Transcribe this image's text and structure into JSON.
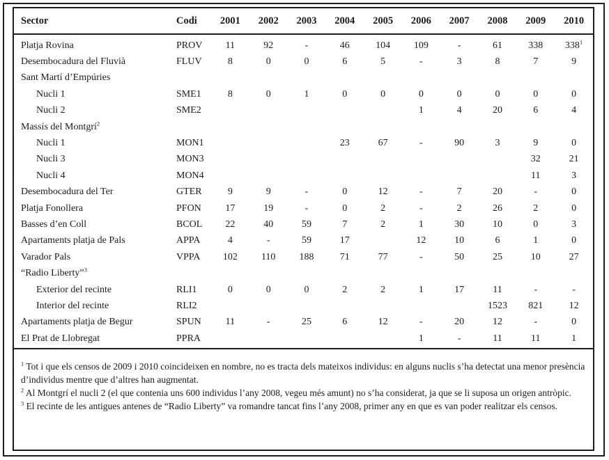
{
  "table": {
    "columns": [
      "Sector",
      "Codi",
      "2001",
      "2002",
      "2003",
      "2004",
      "2005",
      "2006",
      "2007",
      "2008",
      "2009",
      "2010"
    ],
    "rows": [
      {
        "sector": "Platja Rovina",
        "indent": false,
        "codi": "PROV",
        "values": [
          "11",
          "92",
          "-",
          "46",
          "104",
          "109",
          "-",
          "61",
          "338",
          "338^1"
        ]
      },
      {
        "sector": "Desembocadura del Fluvià",
        "indent": false,
        "codi": "FLUV",
        "values": [
          "8",
          "0",
          "0",
          "6",
          "5",
          "-",
          "3",
          "8",
          "7",
          "9"
        ]
      },
      {
        "sector": "Sant Martí d’Empúries",
        "indent": false,
        "codi": "",
        "values": [
          "",
          "",
          "",
          "",
          "",
          "",
          "",
          "",
          "",
          ""
        ]
      },
      {
        "sector": "Nucli 1",
        "indent": true,
        "codi": "SME1",
        "values": [
          "8",
          "0",
          "1",
          "0",
          "0",
          "0",
          "0",
          "0",
          "0",
          "0"
        ]
      },
      {
        "sector": "Nucli 2",
        "indent": true,
        "codi": "SME2",
        "values": [
          "",
          "",
          "",
          "",
          "",
          "1",
          "4",
          "20",
          "6",
          "4"
        ]
      },
      {
        "sector": "Massís del Montgrí^2",
        "indent": false,
        "codi": "",
        "values": [
          "",
          "",
          "",
          "",
          "",
          "",
          "",
          "",
          "",
          ""
        ]
      },
      {
        "sector": "Nucli 1",
        "indent": true,
        "codi": "MON1",
        "values": [
          "",
          "",
          "",
          "23",
          "67",
          "-",
          "90",
          "3",
          "9",
          "0"
        ]
      },
      {
        "sector": "Nucli 3",
        "indent": true,
        "codi": "MON3",
        "values": [
          "",
          "",
          "",
          "",
          "",
          "",
          "",
          "",
          "32",
          "21"
        ]
      },
      {
        "sector": "Nucli 4",
        "indent": true,
        "codi": "MON4",
        "values": [
          "",
          "",
          "",
          "",
          "",
          "",
          "",
          "",
          "11",
          "3"
        ]
      },
      {
        "sector": "Desembocadura del Ter",
        "indent": false,
        "codi": "GTER",
        "values": [
          "9",
          "9",
          "-",
          "0",
          "12",
          "-",
          "7",
          "20",
          "-",
          "0"
        ]
      },
      {
        "sector": "Platja Fonollera",
        "indent": false,
        "codi": "PFON",
        "values": [
          "17",
          "19",
          "-",
          "0",
          "2",
          "-",
          "2",
          "26",
          "2",
          "0"
        ]
      },
      {
        "sector": "Basses d’en Coll",
        "indent": false,
        "codi": "BCOL",
        "values": [
          "22",
          "40",
          "59",
          "7",
          "2",
          "1",
          "30",
          "10",
          "0",
          "3"
        ]
      },
      {
        "sector": "Apartaments platja de Pals",
        "indent": false,
        "codi": "APPA",
        "values": [
          "4",
          "-",
          "59",
          "17",
          "",
          "12",
          "10",
          "6",
          "1",
          "0"
        ]
      },
      {
        "sector": "Varador Pals",
        "indent": false,
        "codi": "VPPA",
        "values": [
          "102",
          "110",
          "188",
          "71",
          "77",
          "-",
          "50",
          "25",
          "10",
          "27"
        ]
      },
      {
        "sector": "“Radio Liberty”^3",
        "indent": false,
        "codi": "",
        "values": [
          "",
          "",
          "",
          "",
          "",
          "",
          "",
          "",
          "",
          ""
        ]
      },
      {
        "sector": "Exterior del recinte",
        "indent": true,
        "codi": "RLI1",
        "values": [
          "0",
          "0",
          "0",
          "2",
          "2",
          "1",
          "17",
          "11",
          "-",
          "-"
        ]
      },
      {
        "sector": "Interior del recinte",
        "indent": true,
        "codi": "RLI2",
        "values": [
          "",
          "",
          "",
          "",
          "",
          "",
          "",
          "1523",
          "821",
          "12"
        ]
      },
      {
        "sector": "Apartaments platja de Begur",
        "indent": false,
        "codi": "SPUN",
        "values": [
          "11",
          "-",
          "25",
          "6",
          "12",
          "-",
          "20",
          "12",
          "-",
          "0"
        ]
      },
      {
        "sector": "El Prat de Llobregat",
        "indent": false,
        "codi": "PPRA",
        "values": [
          "",
          "",
          "",
          "",
          "",
          "1",
          "-",
          "11",
          "11",
          "1"
        ]
      }
    ]
  },
  "footnotes": [
    {
      "marker": "1",
      "text": "Tot i que els censos de 2009 i 2010 coincideixen en nombre, no es tracta dels mateixos individus: en alguns nuclis s’ha detectat una menor presència d’individus mentre que d’altres han augmentat."
    },
    {
      "marker": "2",
      "text": "Al Montgrí el nucli 2 (el que contenia uns 600 individus l’any 2008, vegeu més amunt) no s’ha considerat, ja que se li suposa un origen antròpic."
    },
    {
      "marker": "3",
      "text": "El recinte de les antigues antenes de “Radio Liberty” va romandre tancat fins l’any 2008, primer any en que es van poder realitzar els censos."
    }
  ],
  "colors": {
    "text": "#1a1a28",
    "border": "#1c1c24",
    "background": "#ffffff"
  }
}
